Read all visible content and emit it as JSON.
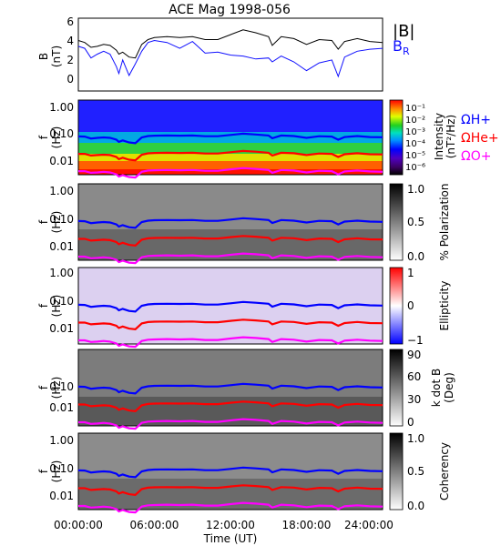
{
  "title": "ACE Mag 1998-056",
  "xaxis": {
    "label": "Time (UT)",
    "tick_labels": [
      "00:00:00",
      "06:00:00",
      "12:00:00",
      "18:00:00",
      "24:00:00"
    ],
    "range_hours": [
      0,
      24
    ]
  },
  "overlay_labels": {
    "h": "ΩH+",
    "he": "ΩHe+",
    "o": "ΩO+"
  },
  "colors": {
    "B_total": "#000000",
    "B_R": "#1010ff",
    "omega_h": "#0000ff",
    "omega_he": "#ff0000",
    "omega_o": "#ff00ff"
  },
  "panels": {
    "b": {
      "ylabel": "B (nT)",
      "ylabel_line1": "B",
      "ylabel_line2": "(nT)",
      "ylim": [
        -1,
        6.5
      ],
      "yticks": [
        "6",
        "4",
        "2",
        "0"
      ],
      "legend_total": "|B|",
      "legend_r": "B",
      "legend_r_sub": "R"
    },
    "intensity": {
      "ylabel_line1": "f",
      "ylabel_line2": "(Hz)",
      "yticks": [
        "1.00",
        "0.10",
        "0.01"
      ],
      "colorbar_title_line1": "Intensity",
      "colorbar_title_line2": "(nT²/Hz)",
      "colorbar_ticks": [
        "10⁻¹",
        "10⁻²",
        "10⁻³",
        "10⁻⁴",
        "10⁻⁵",
        "10⁻⁶"
      ]
    },
    "polarization": {
      "ylabel_line1": "f",
      "ylabel_line2": "(Hz)",
      "yticks": [
        "1.00",
        "0.10",
        "0.01"
      ],
      "colorbar_title": "% Polarization",
      "colorbar_ticks": [
        "1.0",
        "0.5",
        "0.0"
      ]
    },
    "ellipticity": {
      "ylabel_line1": "f",
      "ylabel_line2": "(Hz)",
      "yticks": [
        "1.00",
        "0.10",
        "0.01"
      ],
      "colorbar_title": "Ellipticity",
      "colorbar_ticks": [
        "1",
        "0",
        "−1"
      ]
    },
    "kdotb": {
      "ylabel_line1": "f",
      "ylabel_line2": "(Hz)",
      "yticks": [
        "1.00",
        "0.10",
        "0.01"
      ],
      "colorbar_title_line1": "k dot B",
      "colorbar_title_line2": "(Deg)",
      "colorbar_ticks": [
        "90",
        "60",
        "30",
        "0"
      ]
    },
    "coherency": {
      "ylabel_line1": "f",
      "ylabel_line2": "(Hz)",
      "yticks": [
        "1.00",
        "0.10",
        "0.01"
      ],
      "colorbar_title": "Coherency",
      "colorbar_ticks": [
        "1.0",
        "0.5",
        "0.0"
      ]
    }
  },
  "chart_data": {
    "type": "heatmap",
    "title": "ACE Mag 1998-056",
    "xlabel": "Time (UT)",
    "x_hours": [
      0,
      0.5,
      1,
      1.5,
      2,
      2.5,
      3,
      3.2,
      3.5,
      4,
      4.5,
      5,
      5.5,
      6,
      7,
      8,
      9,
      10,
      11,
      12,
      13,
      14,
      15,
      15.3,
      16,
      17,
      18,
      19,
      20,
      20.5,
      21,
      22,
      23,
      24
    ],
    "series": [
      {
        "name": "|B|",
        "unit": "nT",
        "values": [
          4.2,
          4.0,
          3.5,
          3.6,
          3.8,
          3.7,
          3.2,
          2.8,
          3.0,
          2.5,
          2.4,
          3.8,
          4.3,
          4.5,
          4.6,
          4.5,
          4.6,
          4.3,
          4.3,
          4.8,
          5.3,
          5.0,
          4.6,
          3.7,
          4.6,
          4.4,
          3.8,
          4.3,
          4.2,
          3.3,
          4.1,
          4.4,
          4.1,
          4.0
        ]
      },
      {
        "name": "B_R",
        "unit": "nT",
        "values": [
          3.6,
          3.4,
          2.4,
          2.8,
          3.1,
          2.8,
          1.5,
          0.8,
          2.2,
          0.6,
          1.8,
          3.1,
          4.0,
          4.2,
          4.0,
          3.4,
          4.1,
          2.9,
          3.0,
          2.7,
          2.6,
          2.3,
          2.4,
          2.0,
          2.6,
          2.0,
          1.1,
          1.9,
          2.2,
          0.5,
          2.5,
          3.1,
          3.3,
          3.4
        ]
      }
    ],
    "ylim_freq_hz": [
      0.003,
      1.2
    ],
    "omega_h_plus_hz": [
      0.065,
      0.064,
      0.055,
      0.058,
      0.06,
      0.058,
      0.05,
      0.042,
      0.047,
      0.04,
      0.038,
      0.06,
      0.067,
      0.069,
      0.07,
      0.069,
      0.07,
      0.066,
      0.066,
      0.073,
      0.081,
      0.076,
      0.07,
      0.056,
      0.07,
      0.067,
      0.058,
      0.066,
      0.064,
      0.05,
      0.062,
      0.067,
      0.062,
      0.061
    ],
    "omega_he_plus_hz": [
      0.016,
      0.016,
      0.014,
      0.0145,
      0.015,
      0.0145,
      0.0125,
      0.0105,
      0.0118,
      0.01,
      0.0095,
      0.015,
      0.0167,
      0.0172,
      0.0175,
      0.0172,
      0.0175,
      0.0165,
      0.0165,
      0.0183,
      0.0202,
      0.019,
      0.0175,
      0.014,
      0.0175,
      0.0168,
      0.0145,
      0.0165,
      0.016,
      0.0125,
      0.0155,
      0.0168,
      0.0155,
      0.0153
    ],
    "omega_o_plus_hz": [
      0.004,
      0.004,
      0.0035,
      0.0036,
      0.0038,
      0.0036,
      0.0031,
      0.0026,
      0.0029,
      0.0025,
      0.0024,
      0.0038,
      0.0042,
      0.0043,
      0.0044,
      0.0043,
      0.0044,
      0.0041,
      0.0041,
      0.0046,
      0.0051,
      0.0048,
      0.0044,
      0.0035,
      0.0044,
      0.0042,
      0.0036,
      0.0041,
      0.004,
      0.0031,
      0.0039,
      0.0042,
      0.0039,
      0.0038
    ],
    "panels": [
      "|B| and B_R",
      "Intensity",
      "% Polarization",
      "Ellipticity",
      "k dot B",
      "Coherency"
    ]
  }
}
